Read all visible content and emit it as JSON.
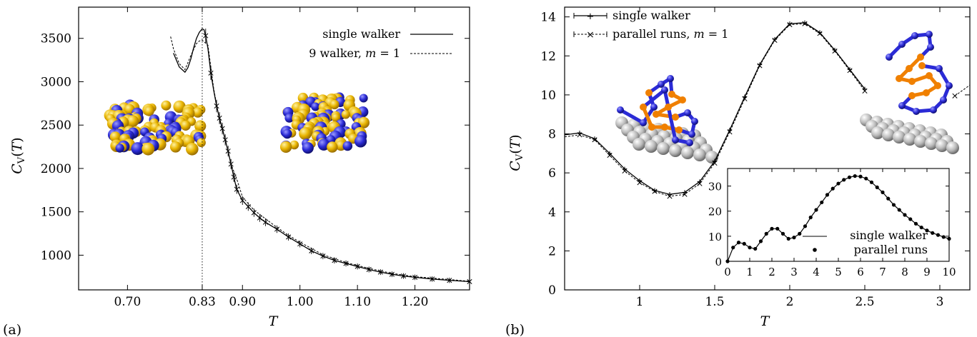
{
  "panel_labels": {
    "a": "(a)",
    "b": "(b)"
  },
  "chart_data": [
    {
      "type": "line",
      "panel": "(a)",
      "xlabel": "T",
      "ylabel": "C_V(T)",
      "xlim": [
        0.615,
        1.295
      ],
      "ylim": [
        600,
        3860
      ],
      "xticks": [
        0.7,
        0.83,
        0.9,
        1.0,
        1.1,
        1.2
      ],
      "xtick_labels": [
        "0.70",
        "0.83",
        "0.90",
        "1.00",
        "1.10",
        "1.20"
      ],
      "yticks": [
        1000,
        1500,
        2000,
        2500,
        3000,
        3500
      ],
      "ytick_labels": [
        "1000",
        "1500",
        "2000",
        "2500",
        "3000",
        "3500"
      ],
      "vline_x": 0.83,
      "legend_position": "top-right",
      "series": [
        {
          "name": "single walker",
          "style": "solid",
          "x": [
            0.78,
            0.79,
            0.8,
            0.805,
            0.81,
            0.815,
            0.82,
            0.825,
            0.83,
            0.833,
            0.836,
            0.84,
            0.845,
            0.85,
            0.855,
            0.86,
            0.865,
            0.87,
            0.875,
            0.88,
            0.885,
            0.89,
            0.9,
            0.91,
            0.92,
            0.93,
            0.94,
            0.96,
            0.98,
            1.0,
            1.02,
            1.04,
            1.06,
            1.08,
            1.1,
            1.12,
            1.14,
            1.16,
            1.18,
            1.2,
            1.23,
            1.26,
            1.295
          ],
          "y": [
            3330,
            3170,
            3110,
            3160,
            3260,
            3390,
            3500,
            3570,
            3610,
            3600,
            3530,
            3380,
            3100,
            2900,
            2720,
            2580,
            2460,
            2330,
            2200,
            2050,
            1900,
            1760,
            1630,
            1560,
            1490,
            1430,
            1380,
            1300,
            1210,
            1130,
            1050,
            990,
            940,
            905,
            870,
            835,
            805,
            780,
            760,
            745,
            725,
            710,
            695
          ]
        },
        {
          "name": "9 walker, m = 1",
          "style": "dashed",
          "x": [
            0.775,
            0.78,
            0.79,
            0.8,
            0.81,
            0.82,
            0.825,
            0.83,
            0.84,
            0.85,
            0.86,
            0.87,
            0.88,
            0.89,
            0.9,
            0.92,
            0.94,
            0.96,
            0.98,
            1.0,
            1.04,
            1.08,
            1.12,
            1.16,
            1.2,
            1.295
          ],
          "y": [
            3520,
            3380,
            3210,
            3140,
            3300,
            3440,
            3470,
            3480,
            3420,
            2920,
            2560,
            2340,
            2050,
            1880,
            1670,
            1520,
            1420,
            1320,
            1230,
            1150,
            1005,
            915,
            848,
            790,
            752,
            700
          ]
        }
      ]
    },
    {
      "type": "line",
      "panel": "(b)",
      "xlabel": "T",
      "ylabel": "C_V(T)",
      "xlim": [
        0.5,
        3.2
      ],
      "ylim": [
        0,
        14.5
      ],
      "xticks": [
        1,
        1.5,
        2,
        2.5,
        3
      ],
      "xtick_labels": [
        "1",
        "1.5",
        "2",
        "2.5",
        "3"
      ],
      "yticks": [
        0,
        2,
        4,
        6,
        8,
        10,
        12,
        14
      ],
      "ytick_labels": [
        "0",
        "2",
        "4",
        "6",
        "8",
        "10",
        "12",
        "14"
      ],
      "legend_position": "top-left",
      "series": [
        {
          "name": "single walker",
          "style": "solid",
          "x": [
            0.5,
            0.6,
            0.7,
            0.8,
            0.9,
            1.0,
            1.1,
            1.2,
            1.3,
            1.4,
            1.5,
            1.6,
            1.7,
            1.8,
            1.9,
            2.0,
            2.1,
            2.2,
            2.3,
            2.4,
            2.5
          ],
          "y": [
            7.95,
            8.05,
            7.75,
            7.0,
            6.2,
            5.6,
            5.1,
            4.9,
            5.0,
            5.55,
            6.6,
            8.2,
            9.9,
            11.55,
            12.85,
            13.65,
            13.7,
            13.2,
            12.3,
            11.3,
            10.3
          ]
        },
        {
          "name": "parallel runs, m = 1",
          "style": "dashed",
          "x": [
            0.5,
            0.6,
            0.7,
            0.8,
            0.9,
            1.0,
            1.1,
            1.2,
            1.3,
            1.4,
            1.5,
            1.6,
            1.7,
            1.8,
            1.9,
            2.0,
            2.1,
            2.2,
            2.3,
            2.4,
            2.5,
            3.1,
            3.2
          ],
          "y": [
            7.85,
            7.95,
            7.7,
            6.9,
            6.1,
            5.5,
            5.05,
            4.8,
            4.9,
            5.45,
            6.5,
            8.1,
            9.8,
            11.5,
            12.8,
            13.6,
            13.65,
            13.15,
            12.25,
            11.25,
            10.2,
            9.95,
            10.5
          ]
        }
      ]
    },
    {
      "type": "line",
      "panel": "(b) inset",
      "xlim": [
        0,
        10
      ],
      "ylim": [
        0,
        37
      ],
      "xticks": [
        0,
        1,
        2,
        3,
        4,
        5,
        6,
        7,
        8,
        9,
        10
      ],
      "xtick_labels": [
        "0",
        "1",
        "2",
        "3",
        "4",
        "5",
        "6",
        "7",
        "8",
        "9",
        "10"
      ],
      "yticks": [
        0,
        10,
        20,
        30
      ],
      "ytick_labels": [
        "0",
        "10",
        "20",
        "30"
      ],
      "legend_position": "bottom-right",
      "series": [
        {
          "name": "single walker",
          "style": "solid",
          "x": [
            0,
            0.25,
            0.5,
            0.75,
            1.0,
            1.25,
            1.5,
            1.75,
            2.0,
            2.25,
            2.5,
            2.75,
            3.0,
            3.25,
            3.5,
            3.75,
            4.0,
            4.25,
            4.5,
            4.75,
            5.0,
            5.25,
            5.5,
            5.75,
            6.0,
            6.25,
            6.5,
            6.75,
            7.0,
            7.25,
            7.5,
            7.75,
            8.0,
            8.25,
            8.5,
            8.75,
            9.0,
            9.25,
            9.5,
            9.75,
            10.0
          ],
          "y": [
            0,
            5.5,
            7.5,
            7.0,
            5.5,
            5.0,
            8.0,
            11.0,
            13.0,
            13.0,
            11.0,
            9.0,
            9.5,
            11.0,
            14.0,
            17.5,
            20.5,
            23.5,
            26.5,
            29.0,
            31.0,
            32.5,
            33.5,
            34.0,
            33.8,
            33.0,
            31.5,
            29.5,
            27.5,
            25.0,
            22.5,
            20.5,
            18.5,
            16.8,
            15.0,
            13.5,
            12.3,
            11.3,
            10.5,
            9.7,
            9.0
          ]
        },
        {
          "name": "parallel runs",
          "style": "points",
          "x": [
            0,
            0.25,
            0.5,
            0.75,
            1.0,
            1.25,
            1.5,
            1.75,
            2.0,
            2.25,
            2.5,
            2.75,
            3.0,
            3.25,
            3.5,
            3.75,
            4.0,
            4.25,
            4.5,
            4.75,
            5.0,
            5.25,
            5.5,
            5.75,
            6.0,
            6.25,
            6.5,
            6.75,
            7.0,
            7.25,
            7.5,
            7.75,
            8.0,
            8.25,
            8.5,
            8.75,
            9.0,
            9.25,
            9.5,
            9.75,
            10.0
          ],
          "y": [
            0,
            5.5,
            7.5,
            7.0,
            5.5,
            5.0,
            8.0,
            11.0,
            13.0,
            13.0,
            11.0,
            9.0,
            9.5,
            11.0,
            14.0,
            17.5,
            20.5,
            23.5,
            26.5,
            29.0,
            31.0,
            32.5,
            33.5,
            34.0,
            33.8,
            33.0,
            31.5,
            29.5,
            27.5,
            25.0,
            22.5,
            20.5,
            18.5,
            16.8,
            15.0,
            13.5,
            12.3,
            11.3,
            10.5,
            9.7,
            9.0
          ]
        }
      ]
    }
  ],
  "colors": {
    "bead_blue": "#2b2bd6",
    "bead_gold": "#e8b400",
    "bond_orange": "#f08000",
    "substrate_gray": "#b8b8b8"
  }
}
